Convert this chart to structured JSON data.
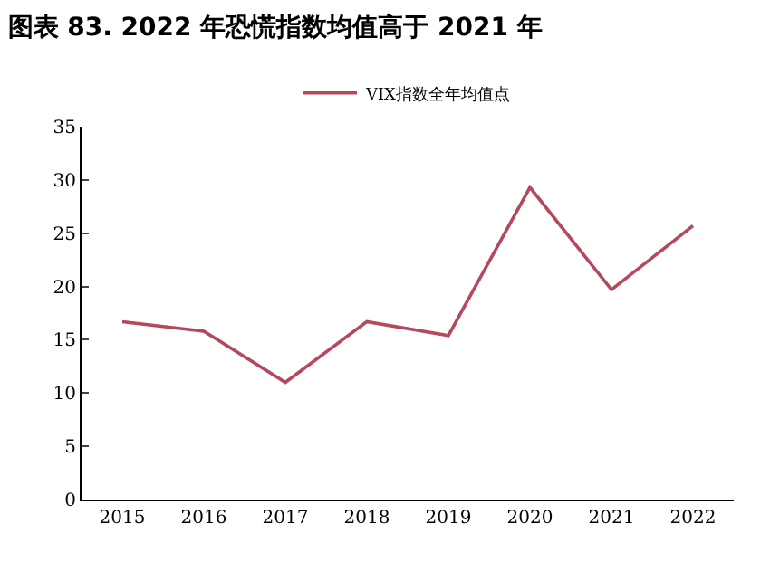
{
  "chart_data": {
    "type": "line",
    "title": "图表 83. 2022 年恐慌指数均值高于 2021 年",
    "categories": [
      "2015",
      "2016",
      "2017",
      "2018",
      "2019",
      "2020",
      "2021",
      "2022"
    ],
    "series": [
      {
        "name": "VIX指数全年均值点",
        "color": "#b5485d",
        "values": [
          16.7,
          15.8,
          11.0,
          16.7,
          15.4,
          29.3,
          19.7,
          25.7
        ]
      }
    ],
    "ylim": [
      0,
      35
    ],
    "yticks": [
      0,
      5,
      10,
      15,
      20,
      25,
      30,
      35
    ],
    "legend": "top",
    "marker": "none",
    "line_style": "solid"
  }
}
